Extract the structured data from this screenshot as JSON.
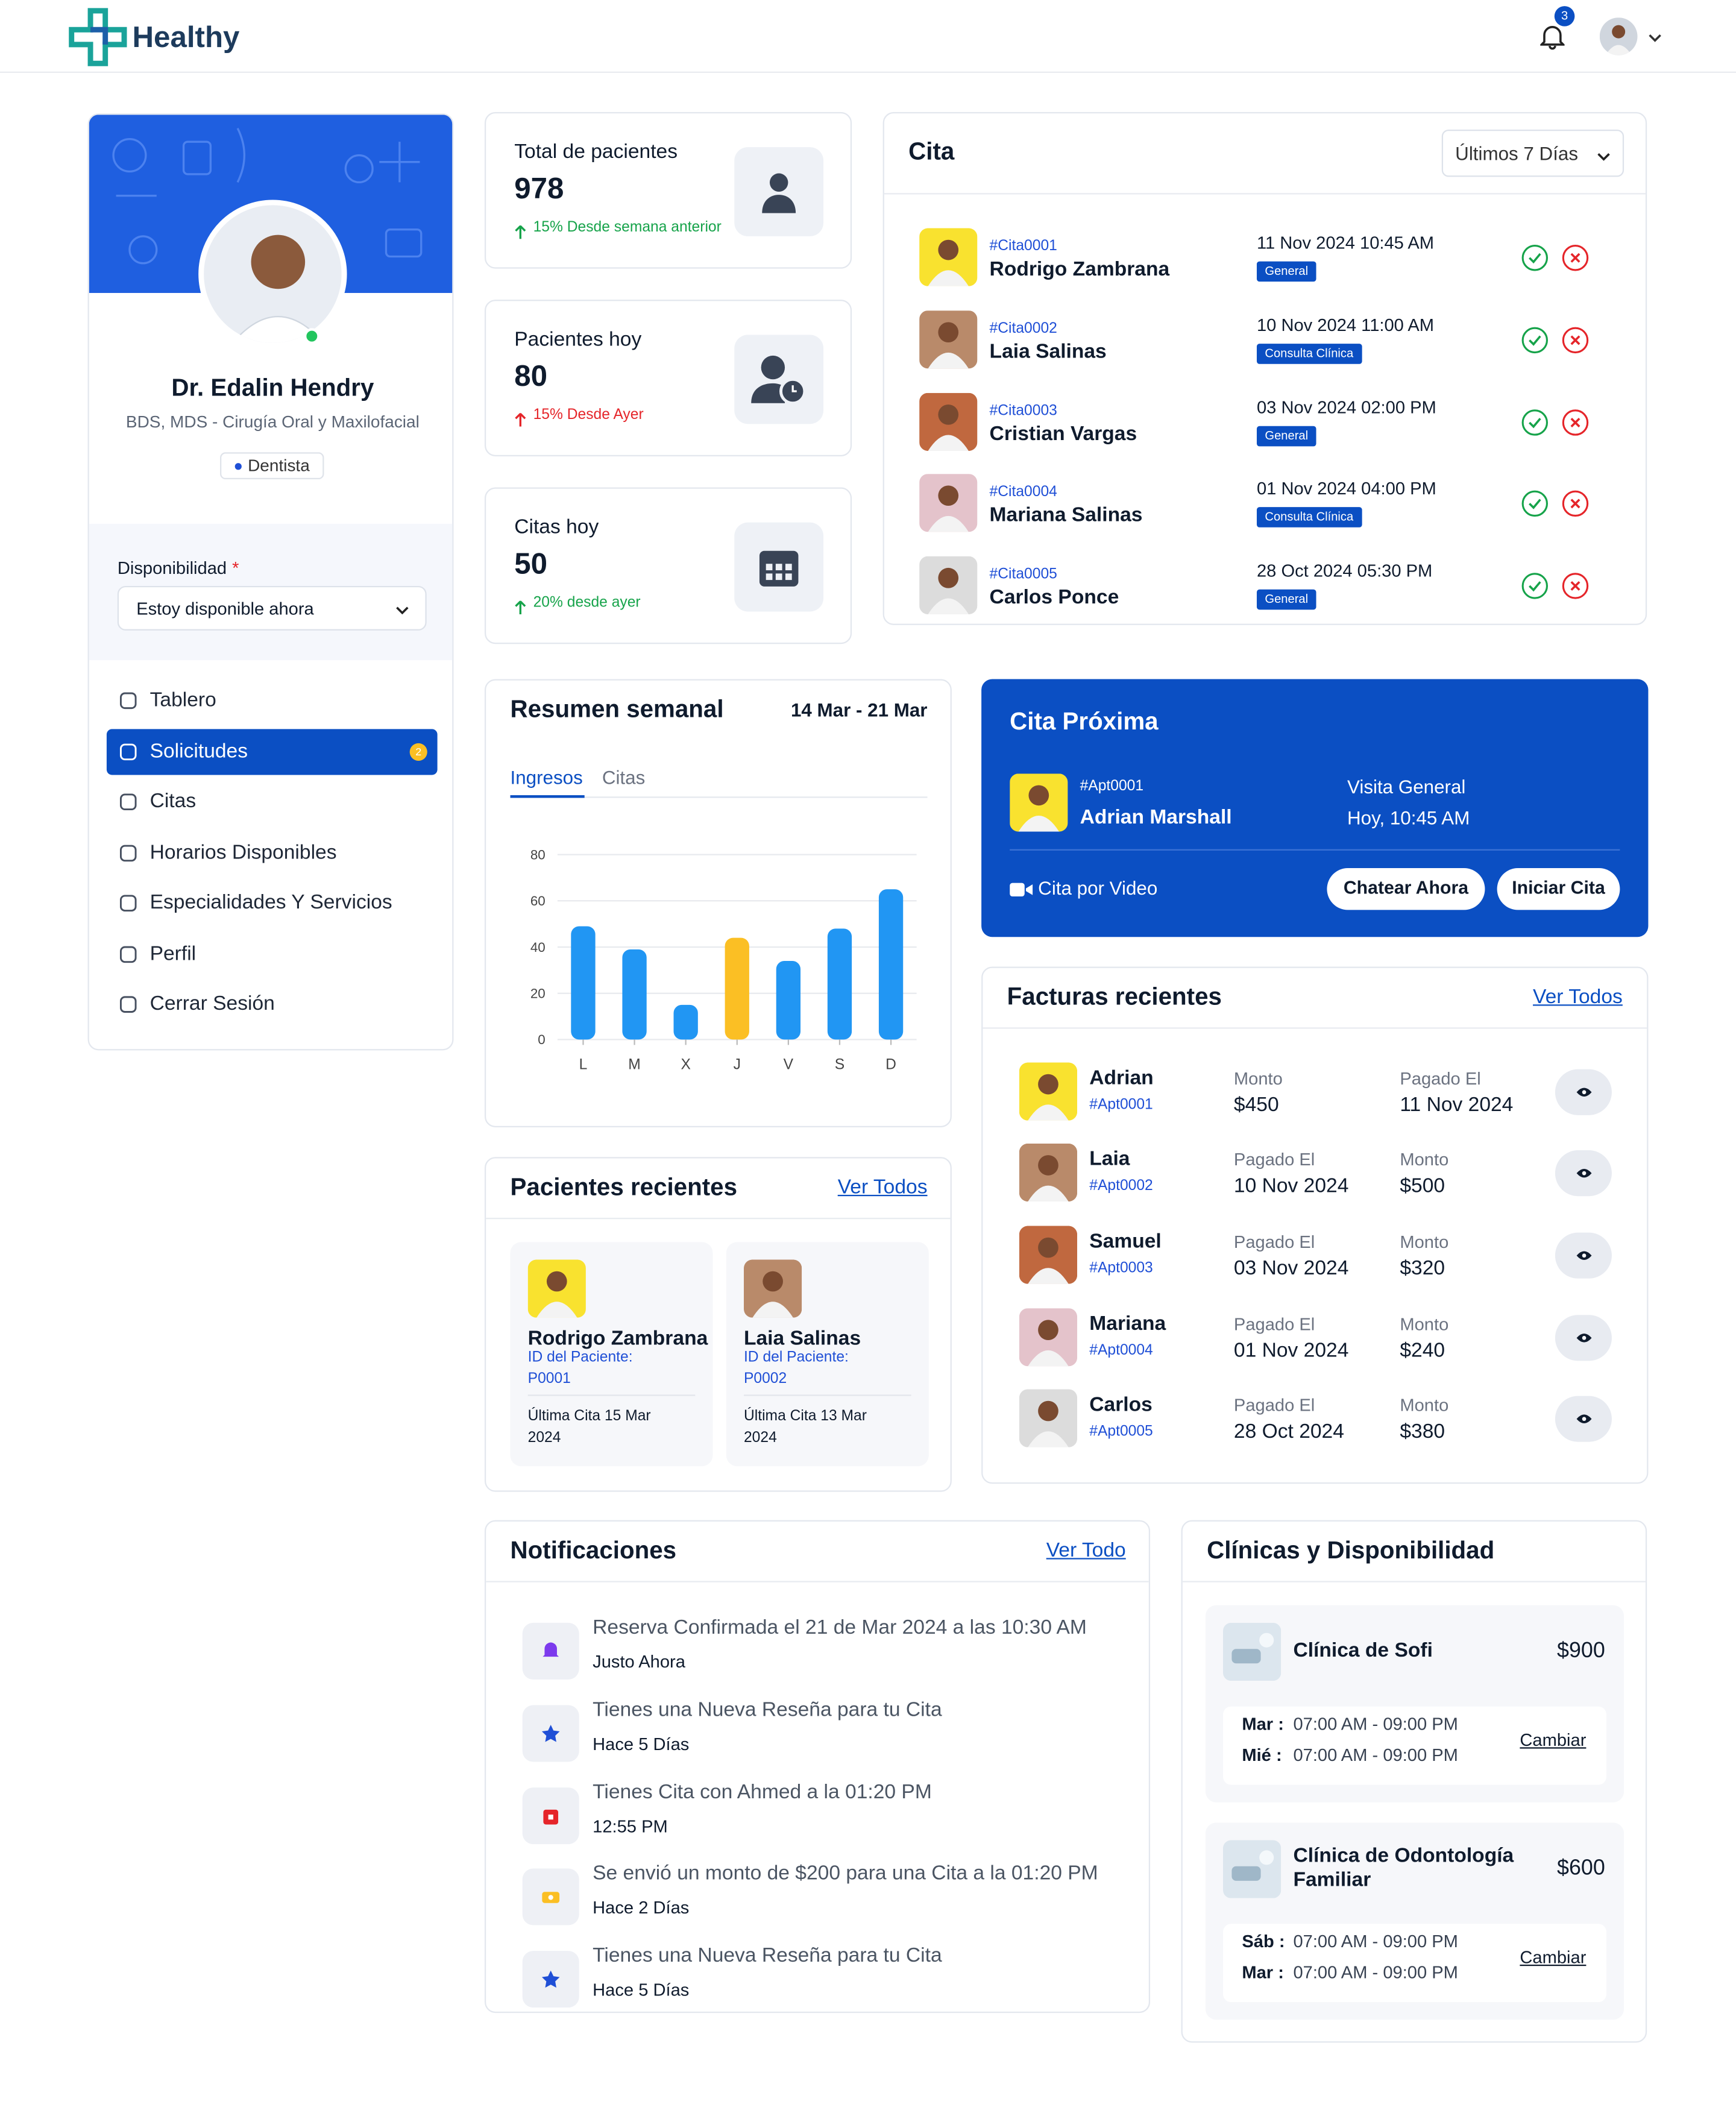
{
  "header": {
    "brand": "Healthy",
    "notification_count": 3
  },
  "profile": {
    "name": "Dr. Edalin Hendry",
    "credentials": "BDS, MDS - Cirugía Oral y Maxilofacial",
    "specialty": "Dentista",
    "availability_label": "Disponibilidad",
    "required_mark": "*",
    "availability_value": "Estoy disponible ahora"
  },
  "menu": [
    {
      "label": "Tablero"
    },
    {
      "label": "Solicitudes",
      "badge": 2,
      "active": true
    },
    {
      "label": "Citas"
    },
    {
      "label": "Horarios Disponibles"
    },
    {
      "label": "Especialidades Y Servicios"
    },
    {
      "label": "Perfil"
    },
    {
      "label": "Cerrar Sesión"
    }
  ],
  "stats": [
    {
      "label": "Total de pacientes",
      "value": 978,
      "change": "15% Desde semana anterior",
      "change_color": "#16a34a"
    },
    {
      "label": "Pacientes hoy",
      "value": 80,
      "change": "15% Desde Ayer",
      "change_color": "#e5252a"
    },
    {
      "label": "Citas hoy",
      "value": 50,
      "change": "20% desde ayer",
      "change_color": "#16a34a"
    }
  ],
  "appointments": {
    "title": "Cita",
    "filter": "Últimos 7 Días",
    "items": [
      {
        "id": "#Cita0001",
        "name": "Rodrigo Zambrana",
        "datetime": "11 Nov 2024 10:45 AM",
        "tag": "General"
      },
      {
        "id": "#Cita0002",
        "name": "Laia Salinas",
        "datetime": "10 Nov 2024 11:00 AM",
        "tag": "Consulta Clínica"
      },
      {
        "id": "#Cita0003",
        "name": "Cristian Vargas",
        "datetime": "03 Nov 2024 02:00 PM",
        "tag": "General"
      },
      {
        "id": "#Cita0004",
        "name": "Mariana Salinas",
        "datetime": "01 Nov 2024 04:00 PM",
        "tag": "Consulta Clínica"
      },
      {
        "id": "#Cita0005",
        "name": "Carlos Ponce",
        "datetime": "28 Oct 2024 05:30 PM",
        "tag": "General"
      }
    ]
  },
  "weekly": {
    "title": "Resumen semanal",
    "range": "14 Mar - 21 Mar",
    "tabs": [
      "Ingresos",
      "Citas"
    ],
    "chart": {
      "type": "bar",
      "categories": [
        "L",
        "M",
        "X",
        "J",
        "V",
        "S",
        "D"
      ],
      "values": [
        49,
        39,
        15,
        44,
        34,
        48,
        65
      ],
      "colors": [
        "#2196f3",
        "#2196f3",
        "#2196f3",
        "#fbbf24",
        "#2196f3",
        "#2196f3",
        "#2196f3"
      ],
      "ylim": [
        0,
        80
      ],
      "yticks": [
        0,
        20,
        40,
        60,
        80
      ],
      "grid": true
    }
  },
  "upcoming": {
    "title": "Cita Próxima",
    "id": "#Apt0001",
    "name": "Adrian Marshall",
    "visit_type": "Visita General",
    "time": "Hoy, 10:45 AM",
    "mode": "Cita por Video",
    "actions": [
      "Chatear Ahora",
      "Iniciar Cita"
    ]
  },
  "invoices": {
    "title": "Facturas recientes",
    "link": "Ver Todos",
    "items": [
      {
        "name": "Adrian",
        "id": "#Apt0001",
        "fields": [
          {
            "label": "Monto",
            "value": "$450"
          },
          {
            "label": "Pagado El",
            "value": "11 Nov 2024"
          }
        ]
      },
      {
        "name": "Laia",
        "id": "#Apt0002",
        "fields": [
          {
            "label": "Pagado El",
            "value": "10 Nov 2024"
          },
          {
            "label": "Monto",
            "value": "$500"
          }
        ]
      },
      {
        "name": "Samuel",
        "id": "#Apt0003",
        "fields": [
          {
            "label": "Pagado El",
            "value": "03 Nov 2024"
          },
          {
            "label": "Monto",
            "value": "$320"
          }
        ]
      },
      {
        "name": "Mariana",
        "id": "#Apt0004",
        "fields": [
          {
            "label": "Pagado El",
            "value": "01 Nov 2024"
          },
          {
            "label": "Monto",
            "value": "$240"
          }
        ]
      },
      {
        "name": "Carlos",
        "id": "#Apt0005",
        "fields": [
          {
            "label": "Pagado El",
            "value": "28 Oct 2024"
          },
          {
            "label": "Monto",
            "value": "$380"
          }
        ]
      }
    ]
  },
  "recent_patients": {
    "title": "Pacientes recientes",
    "link": "Ver Todos",
    "items": [
      {
        "name": "Rodrigo Zambrana",
        "id_label": "ID del Paciente:",
        "id": "P0001",
        "last_visit": "Última Cita 15 Mar 2024"
      },
      {
        "name": "Laia Salinas",
        "id_label": "ID del Paciente:",
        "id": "P0002",
        "last_visit": "Última Cita 13 Mar 2024"
      }
    ]
  },
  "notifications": {
    "title": "Notificaciones",
    "link": "Ver Todo",
    "items": [
      {
        "text": "Reserva Confirmada el 21 de Mar 2024 a las 10:30 AM",
        "time": "Justo Ahora"
      },
      {
        "text": "Tienes una Nueva Reseña para tu Cita",
        "time": "Hace 5 Días"
      },
      {
        "text": "Tienes Cita con Ahmed a la 01:20 PM",
        "time": "12:55 PM"
      },
      {
        "text": "Se envió un monto de $200 para una Cita a la 01:20 PM",
        "time": "Hace 2 Días"
      },
      {
        "text": "Tienes una Nueva Reseña para tu Cita",
        "time": "Hace 5 Días"
      }
    ]
  },
  "clinics": {
    "title": "Clínicas y Disponibilidad",
    "items": [
      {
        "name": "Clínica de Sofi",
        "price": "$900",
        "schedule": [
          {
            "day": "Mar :",
            "hours": "07:00 AM - 09:00 PM"
          },
          {
            "day": "Mié :",
            "hours": "07:00 AM - 09:00 PM"
          }
        ],
        "action": "Cambiar"
      },
      {
        "name": "Clínica de Odontología Familiar",
        "price": "$600",
        "schedule": [
          {
            "day": "Sáb :",
            "hours": "07:00 AM - 09:00 PM"
          },
          {
            "day": "Mar :",
            "hours": "07:00 AM - 09:00 PM"
          }
        ],
        "action": "Cambiar"
      }
    ]
  }
}
